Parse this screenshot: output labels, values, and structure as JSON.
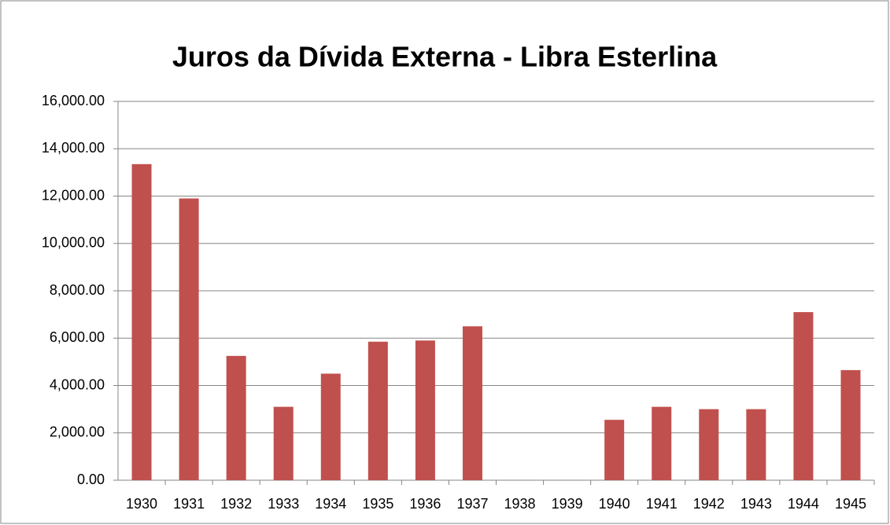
{
  "chart_data": {
    "type": "bar",
    "title": "Juros da Dívida Externa - Libra Esterlina",
    "categories": [
      "1930",
      "1931",
      "1932",
      "1933",
      "1934",
      "1935",
      "1936",
      "1937",
      "1938",
      "1939",
      "1940",
      "1941",
      "1942",
      "1943",
      "1944",
      "1945"
    ],
    "values": [
      13350,
      11900,
      5250,
      3100,
      4500,
      5850,
      5900,
      6500,
      null,
      null,
      2550,
      3100,
      3000,
      3000,
      7100,
      4650
    ],
    "color": "#c0504d",
    "ylim": [
      0,
      16000
    ],
    "yticks": [
      {
        "value": 0,
        "label": "0.00"
      },
      {
        "value": 2000,
        "label": "2,000.00"
      },
      {
        "value": 4000,
        "label": "4,000.00"
      },
      {
        "value": 6000,
        "label": "6,000.00"
      },
      {
        "value": 8000,
        "label": "8,000.00"
      },
      {
        "value": 10000,
        "label": "10,000.00"
      },
      {
        "value": 12000,
        "label": "12,000.00"
      },
      {
        "value": 14000,
        "label": "14,000.00"
      },
      {
        "value": 16000,
        "label": "16,000.00"
      }
    ],
    "grid": true
  }
}
